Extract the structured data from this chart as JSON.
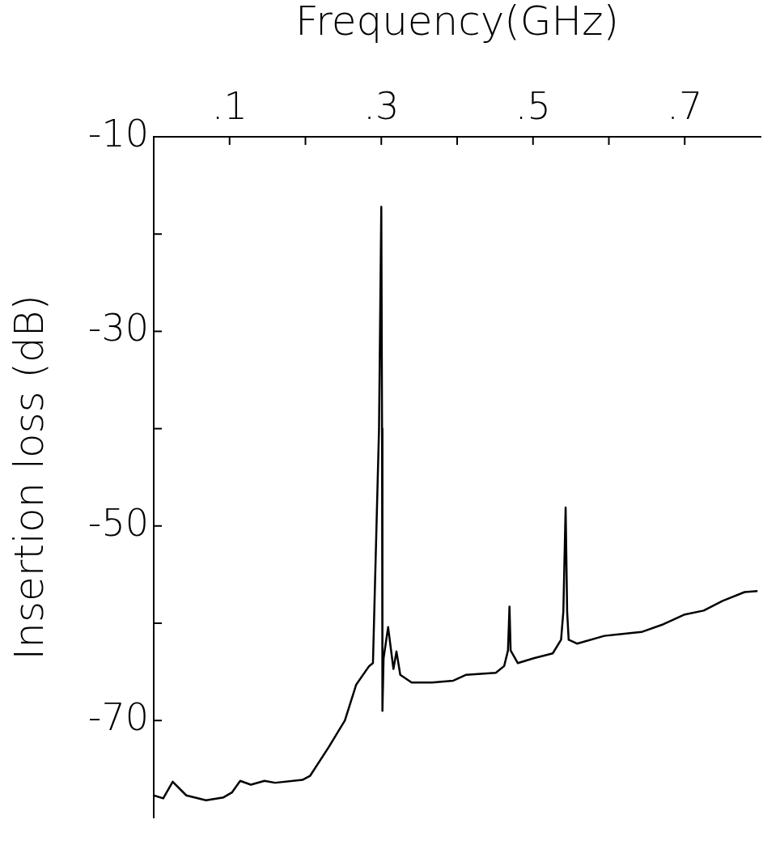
{
  "chart_data": {
    "type": "line",
    "xlabel": "Frequency(GHz)",
    "ylabel": "Insertion loss (dB)",
    "xlim": [
      0,
      0.8
    ],
    "ylim": [
      -80,
      -10
    ],
    "xticks": [
      {
        "value": 0.1,
        "label": ".1"
      },
      {
        "value": 0.2,
        "label": null
      },
      {
        "value": 0.3,
        "label": ".3"
      },
      {
        "value": 0.4,
        "label": null
      },
      {
        "value": 0.5,
        "label": ".5"
      },
      {
        "value": 0.6,
        "label": null
      },
      {
        "value": 0.7,
        "label": ".7"
      }
    ],
    "yticks": [
      -10,
      {
        "value": -20,
        "label": null
      },
      -30,
      {
        "value": -40,
        "label": null
      },
      -50,
      {
        "value": -60,
        "label": null
      },
      -70
    ],
    "marker": "none",
    "legend": false,
    "series": [
      {
        "color": "#000000",
        "x": [
          0.0,
          0.0125,
          0.025,
          0.043,
          0.069,
          0.092,
          0.103,
          0.114,
          0.128,
          0.146,
          0.16,
          0.196,
          0.206,
          0.231,
          0.252,
          0.267,
          0.284,
          0.289,
          0.297,
          0.3,
          0.301,
          0.3015,
          0.303,
          0.309,
          0.316,
          0.32,
          0.325,
          0.34,
          0.367,
          0.395,
          0.412,
          0.451,
          0.462,
          0.467,
          0.469,
          0.4705,
          0.48,
          0.501,
          0.526,
          0.537,
          0.54,
          0.543,
          0.545,
          0.547,
          0.558,
          0.594,
          0.643,
          0.672,
          0.7,
          0.725,
          0.75,
          0.779,
          0.796
        ],
        "values": [
          -77.7,
          -78.0,
          -76.3,
          -77.7,
          -78.2,
          -77.9,
          -77.4,
          -76.2,
          -76.6,
          -76.2,
          -76.4,
          -76.1,
          -75.7,
          -72.7,
          -70.0,
          -66.3,
          -64.4,
          -64.1,
          -40,
          -17.2,
          -40,
          -69,
          -63.6,
          -60.4,
          -64.7,
          -62.9,
          -65.3,
          -66.1,
          -66.1,
          -65.9,
          -65.3,
          -65.1,
          -64.4,
          -62.8,
          -58.3,
          -62.8,
          -64.1,
          -63.6,
          -63.1,
          -61.7,
          -58.8,
          -48.1,
          -58.8,
          -61.7,
          -62.1,
          -61.3,
          -60.9,
          -60.1,
          -59.1,
          -58.7,
          -57.7,
          -56.8,
          -56.7
        ]
      }
    ]
  }
}
